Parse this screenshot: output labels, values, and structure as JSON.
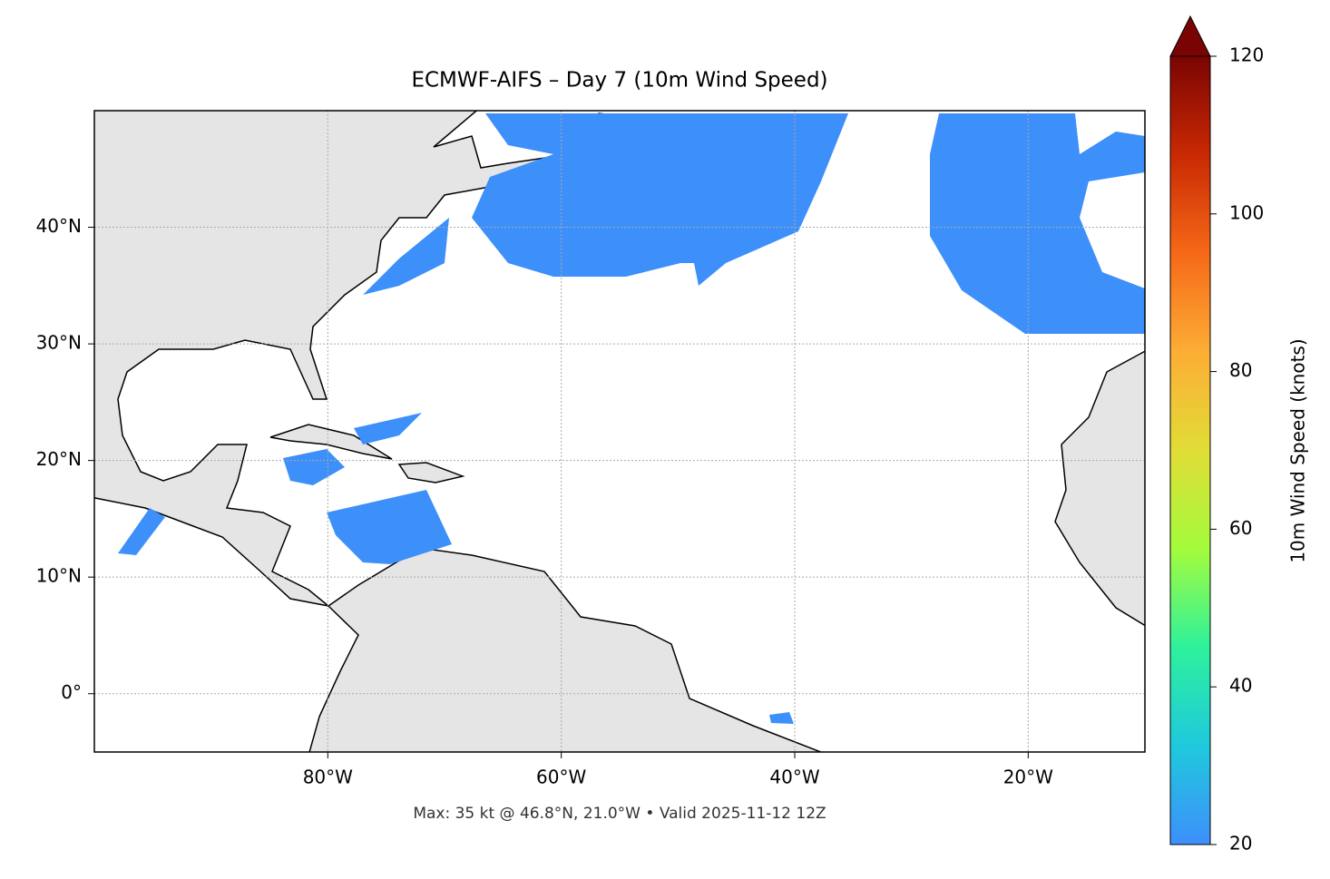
{
  "chart_data": {
    "type": "map",
    "title": "ECMWF-AIFS – Day 7 (10m Wind Speed)",
    "subtitle": "Max: 35 kt @ 46.8°N, 21.0°W • Valid 2025-11-12 12Z",
    "xlim": [
      -100,
      -10
    ],
    "ylim": [
      -5,
      50
    ],
    "xticks": [
      {
        "value": -80,
        "label": "80°W"
      },
      {
        "value": -60,
        "label": "60°W"
      },
      {
        "value": -40,
        "label": "40°W"
      },
      {
        "value": -20,
        "label": "20°W"
      }
    ],
    "yticks": [
      {
        "value": 0,
        "label": "0°"
      },
      {
        "value": 10,
        "label": "10°N"
      },
      {
        "value": 20,
        "label": "20°N"
      },
      {
        "value": 30,
        "label": "30°N"
      },
      {
        "value": 40,
        "label": "40°N"
      }
    ],
    "grid": true,
    "colorbar": {
      "label": "10m Wind Speed (knots)",
      "lim": [
        20,
        120
      ],
      "ticks": [
        20,
        40,
        60,
        80,
        100,
        120
      ],
      "colors": [
        "#3e8ffb",
        "#1fc9dd",
        "#2ef19c",
        "#a4fc3c",
        "#e1dd37",
        "#fdad35",
        "#f56918",
        "#c92903",
        "#7a0403"
      ]
    }
  }
}
